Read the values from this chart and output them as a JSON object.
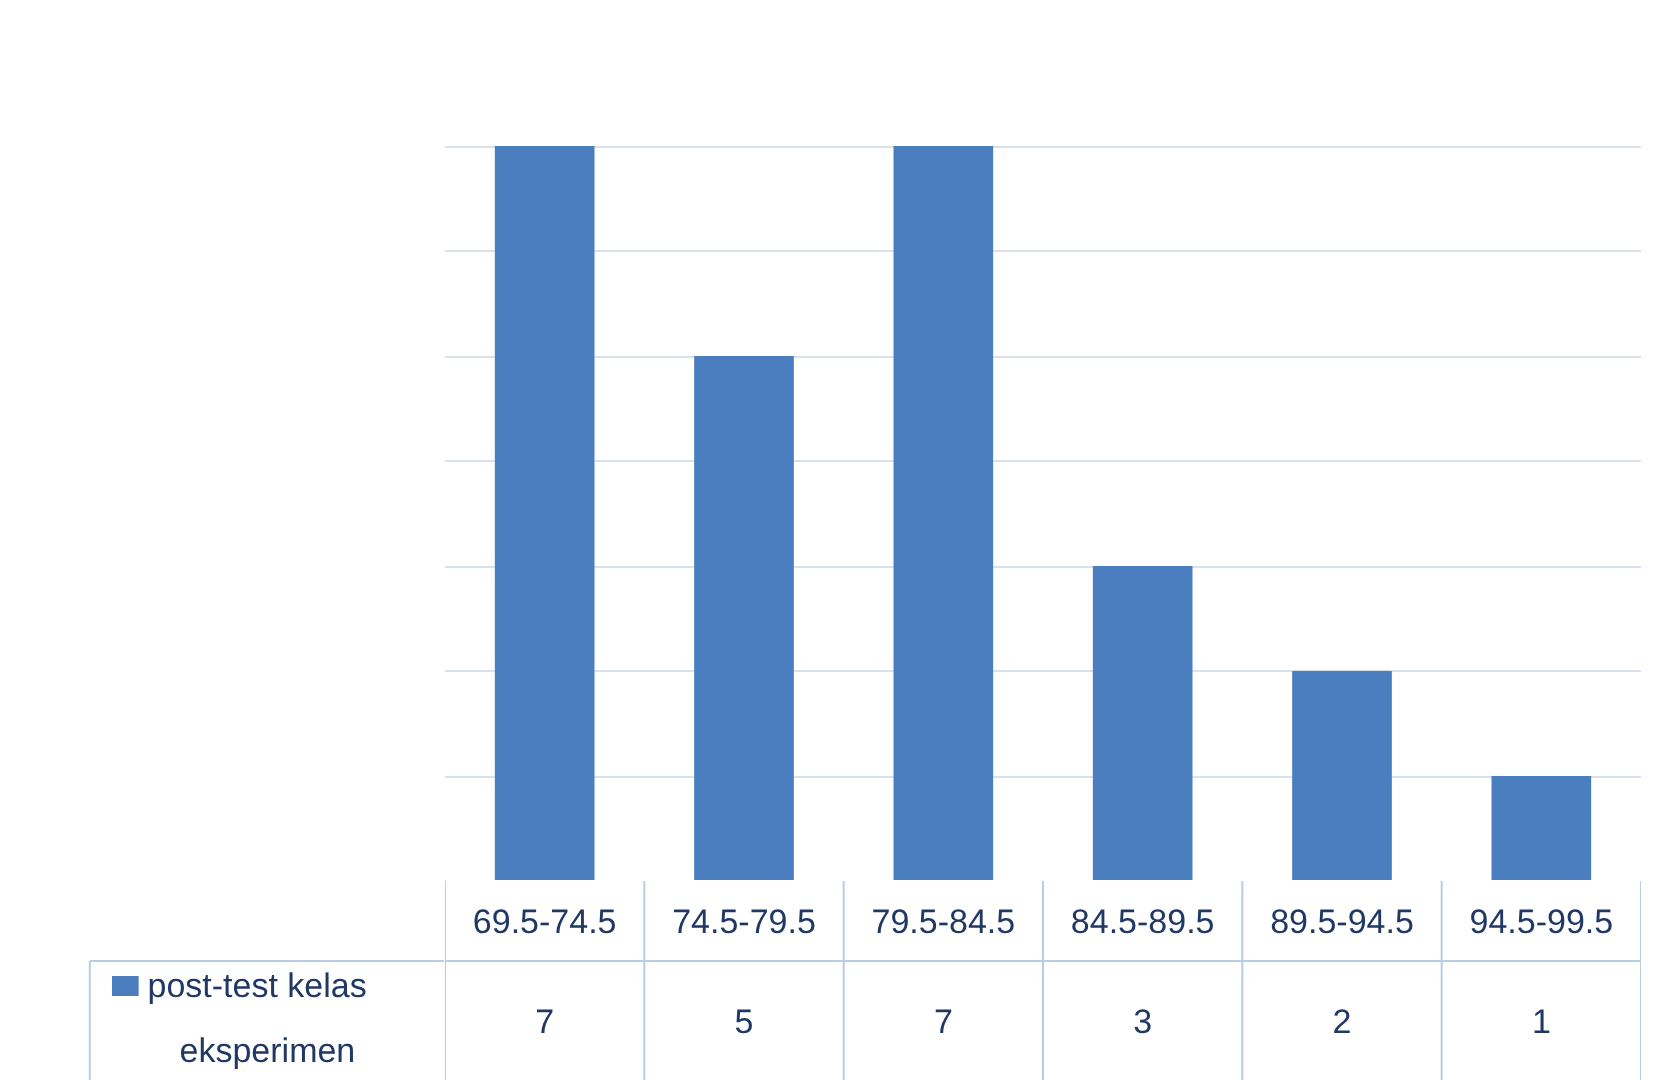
{
  "chart_data": {
    "type": "bar",
    "categories": [
      "69.5-74.5",
      "74.5-79.5",
      "79.5-84.5",
      "84.5-89.5",
      "89.5-94.5",
      "94.5-99.5"
    ],
    "series": [
      {
        "name": "post-test kelas eksperimen",
        "color": "#4a7ebf",
        "values": [
          7,
          5,
          7,
          3,
          2,
          1
        ]
      }
    ],
    "grid": "y",
    "data_labels": true,
    "tick_labels": false
  }
}
